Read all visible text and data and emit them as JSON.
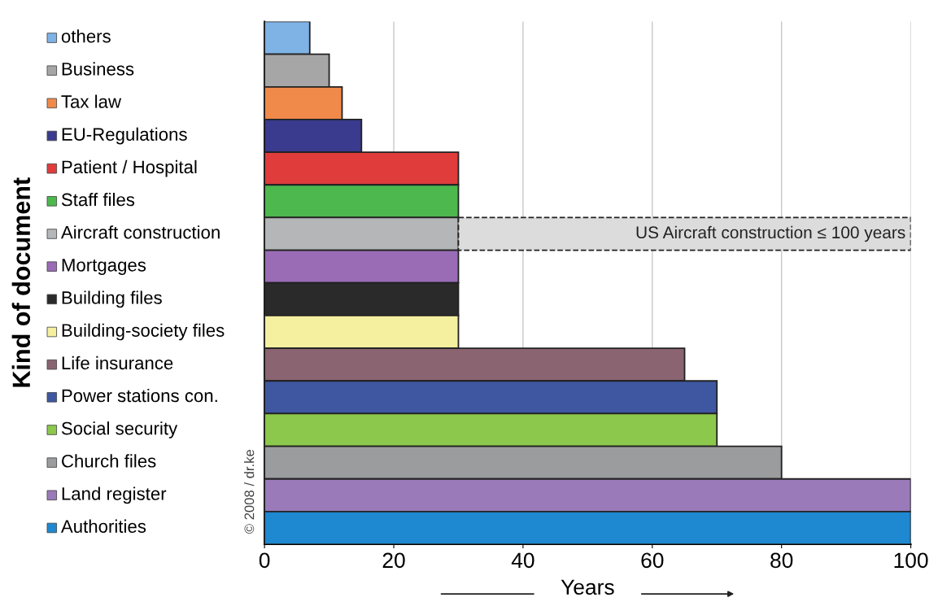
{
  "chart_data": {
    "type": "bar",
    "orientation": "horizontal",
    "stacked": true,
    "categories": [
      "others",
      "Business",
      "Tax law",
      "EU-Regulations",
      "Patient / Hospital",
      "Staff files",
      "Aircraft construction",
      "Mortgages",
      "Building files",
      "Building-society files",
      "Life insurance",
      "Power stations con.",
      "Social security",
      "Church files",
      "Land register",
      "Authorities"
    ],
    "series": [
      {
        "colors": [
          "#7fb2e5",
          "#a6a6a6",
          "#f08a4b",
          "#3a3a8f",
          "#e03c3c",
          "#4db84d",
          "#b4b6b8",
          "#9a6cb6",
          "#2a2a2a",
          "#f5f0a0",
          "#8a6470",
          "#3e57a0",
          "#8cc84b",
          "#9a9c9e",
          "#9a7ab8",
          "#1e88d0"
        ],
        "values": [
          7,
          10,
          12,
          15,
          30,
          30,
          30,
          30,
          30,
          30,
          65,
          70,
          70,
          80,
          100,
          100
        ]
      },
      {
        "color": "#dcdcdc",
        "line_style": "dashed",
        "values": [
          null,
          null,
          null,
          null,
          null,
          null,
          70,
          null,
          null,
          null,
          null,
          null,
          null,
          null,
          null,
          null
        ],
        "value_labels": [
          null,
          null,
          null,
          null,
          null,
          null,
          "US Aircraft construction ≤ 100 years",
          null,
          null,
          null,
          null,
          null,
          null,
          null,
          null,
          null
        ]
      }
    ],
    "xlabel": "Years",
    "ylabel": "Kind of document",
    "xlim": [
      0,
      100
    ],
    "xticks": [
      0,
      20,
      40,
      60,
      80,
      100
    ],
    "grid": "x",
    "annotations": [
      "© 2008 / dr.ke"
    ]
  }
}
